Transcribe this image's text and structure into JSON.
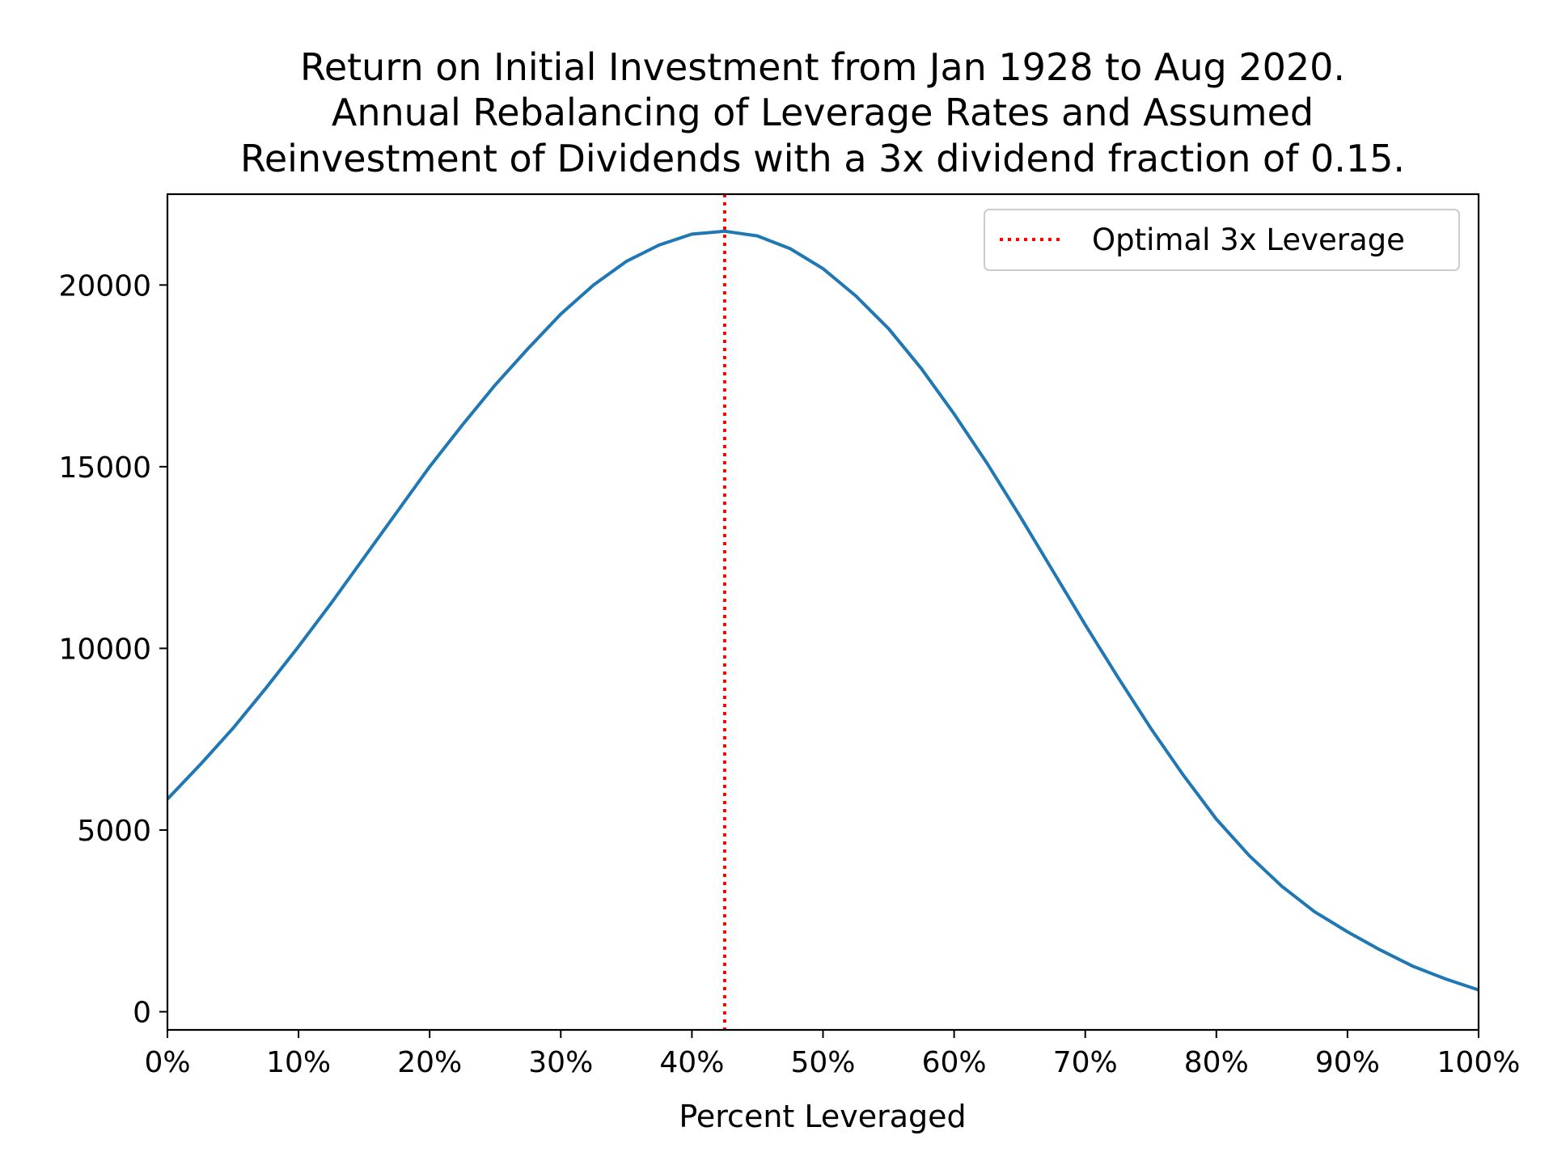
{
  "chart_data": {
    "type": "line",
    "title_lines": [
      "Return on Initial Investment from Jan 1928 to Aug 2020.",
      "Annual Rebalancing of Leverage Rates and Assumed",
      "Reinvestment of Dividends with a 3x dividend fraction of 0.15."
    ],
    "xlabel": "Percent Leveraged",
    "ylabel": "",
    "xlim": [
      0,
      100
    ],
    "ylim": [
      -500,
      22500
    ],
    "x_ticks": [
      0,
      10,
      20,
      30,
      40,
      50,
      60,
      70,
      80,
      90,
      100
    ],
    "x_tick_labels": [
      "0%",
      "10%",
      "20%",
      "30%",
      "40%",
      "50%",
      "60%",
      "70%",
      "80%",
      "90%",
      "100%"
    ],
    "y_ticks": [
      0,
      5000,
      10000,
      15000,
      20000
    ],
    "y_tick_labels": [
      "0",
      "5000",
      "10000",
      "15000",
      "20000"
    ],
    "grid": false,
    "legend": {
      "placement": "top-right",
      "entries": [
        "Optimal 3x Leverage"
      ]
    },
    "series": [
      {
        "color": "#1f77b4",
        "x": [
          0,
          2.5,
          5,
          7.5,
          10,
          12.5,
          15,
          17.5,
          20,
          22.5,
          25,
          27.5,
          30,
          32.5,
          35,
          37.5,
          40,
          42.5,
          45,
          47.5,
          50,
          52.5,
          55,
          57.5,
          60,
          62.5,
          65,
          67.5,
          70,
          72.5,
          75,
          77.5,
          80,
          82.5,
          85,
          87.5,
          90,
          92.5,
          95,
          97.5,
          100
        ],
        "y": [
          5850,
          6800,
          7800,
          8900,
          10050,
          11250,
          12500,
          13750,
          15000,
          16150,
          17250,
          18250,
          19200,
          20000,
          20650,
          21100,
          21400,
          21480,
          21350,
          21000,
          20450,
          19700,
          18800,
          17700,
          16450,
          15100,
          13650,
          12150,
          10650,
          9200,
          7800,
          6500,
          5300,
          4300,
          3450,
          2750,
          2200,
          1700,
          1250,
          900,
          600
        ]
      }
    ],
    "vlines": [
      {
        "x": 42.5,
        "label": "Optimal 3x Leverage",
        "color": "#ff0000",
        "style": "dotted"
      }
    ]
  }
}
